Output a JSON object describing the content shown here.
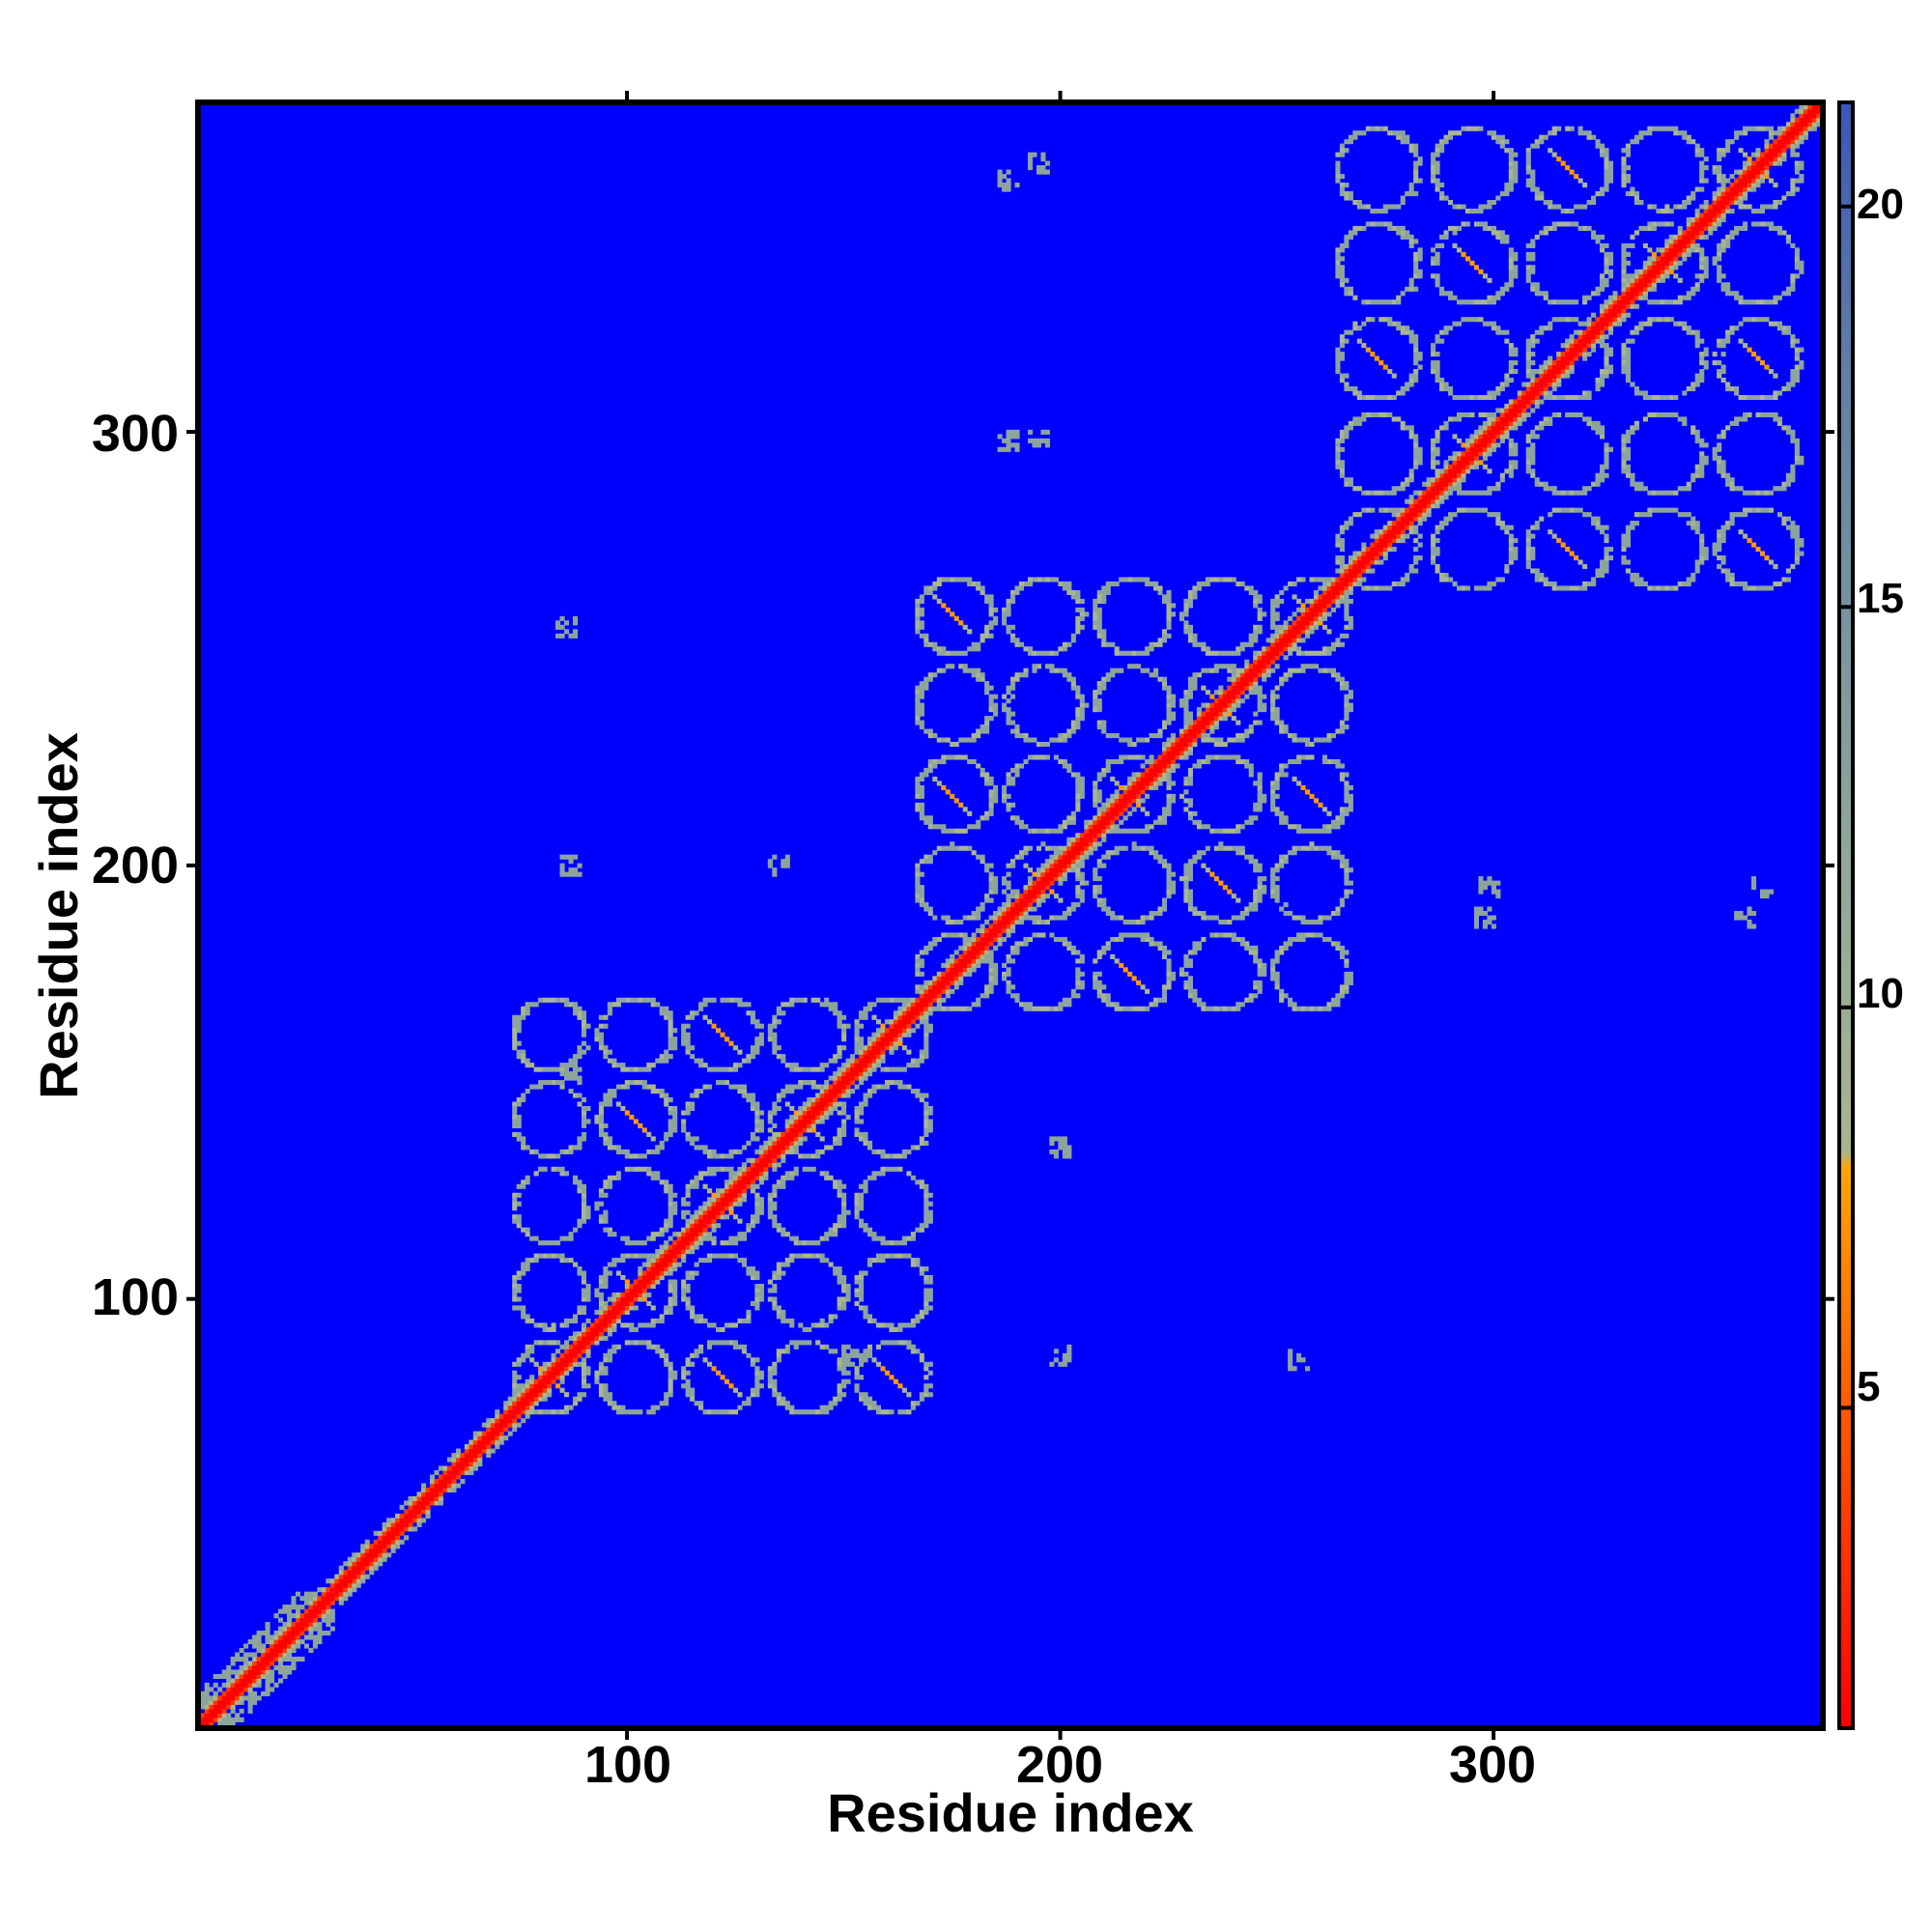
{
  "chart_data": {
    "type": "heatmap",
    "title": "",
    "xlabel": "Residue index",
    "ylabel": "Residue index",
    "xlim": [
      1,
      376
    ],
    "ylim": [
      1,
      376
    ],
    "x_ticks": [
      100,
      200,
      300
    ],
    "y_ticks": [
      100,
      200,
      300
    ],
    "x_tick_labels": [
      "100",
      "200",
      "300"
    ],
    "y_tick_labels": [
      "100",
      "200",
      "300"
    ],
    "colorbar": {
      "range": [
        1,
        21.3
      ],
      "ticks": [
        5,
        10,
        15,
        20
      ],
      "tick_labels": [
        "5",
        "10",
        "15",
        "20"
      ],
      "stops": [
        {
          "value": 1,
          "color": "#ff0000"
        },
        {
          "value": 5,
          "color": "#ff5a00"
        },
        {
          "value": 8,
          "color": "#ffa500"
        },
        {
          "value": 8.2,
          "color": "#a7b58e"
        },
        {
          "value": 12,
          "color": "#8fa79a"
        },
        {
          "value": 18,
          "color": "#5f7fa6"
        },
        {
          "value": 21.3,
          "color": "#3a57b8"
        }
      ]
    },
    "background_value": 21.3,
    "background_color": "#0000ff",
    "grid": false,
    "legend": "colorbar-right",
    "domains": [
      {
        "range": [
          1,
          28
        ],
        "pattern": "diagonal-band"
      },
      {
        "range": [
          72,
          175
        ],
        "pattern": "lattice"
      },
      {
        "range": [
          165,
          272
        ],
        "pattern": "lattice"
      },
      {
        "range": [
          262,
          376
        ],
        "pattern": "lattice"
      }
    ],
    "isolated_contacts": [
      [
        86,
        255
      ],
      [
        87,
        200
      ],
      [
        135,
        200
      ],
      [
        188,
        358
      ],
      [
        188,
        298
      ],
      [
        200,
        135
      ],
      [
        200,
        87
      ],
      [
        255,
        86
      ],
      [
        298,
        188
      ],
      [
        358,
        188
      ],
      [
        299,
        195
      ],
      [
        195,
        299
      ],
      [
        362,
        195
      ],
      [
        195,
        362
      ],
      [
        152,
        87
      ],
      [
        87,
        152
      ]
    ]
  }
}
